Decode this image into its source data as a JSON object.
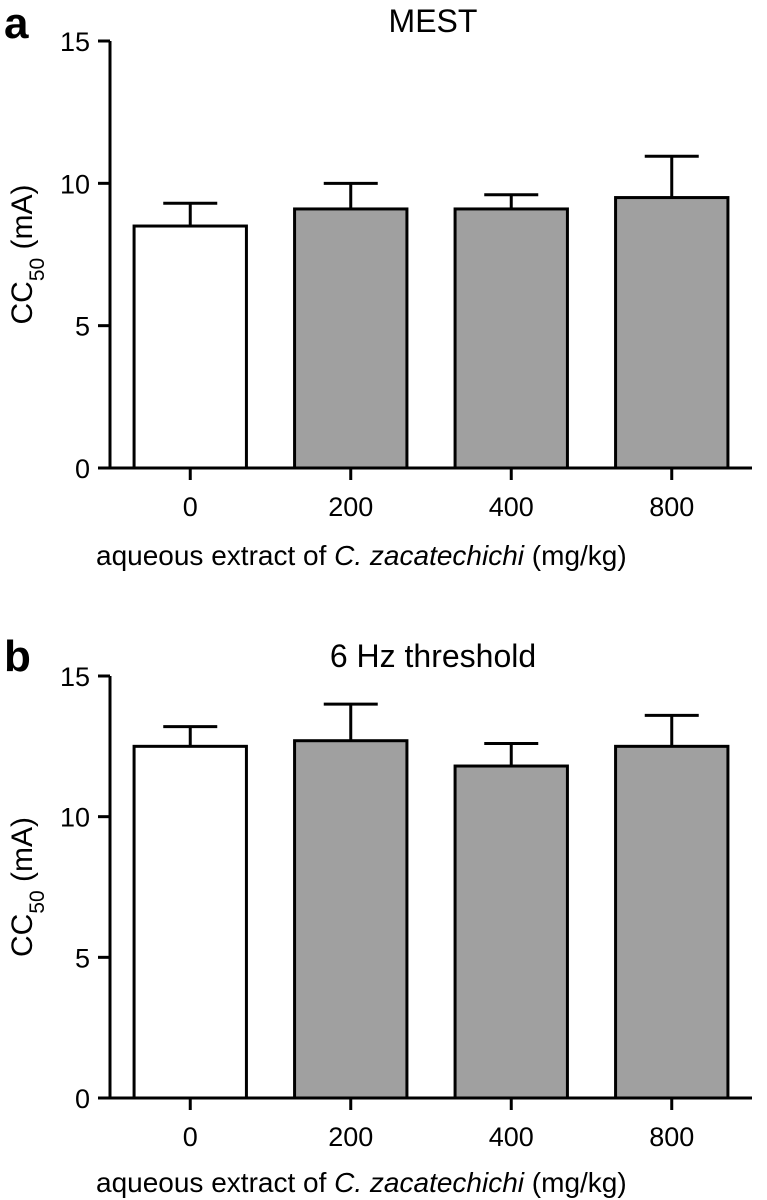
{
  "chart_data": [
    {
      "panel": "a",
      "type": "bar",
      "title": "MEST",
      "ylabel": "CC",
      "ylabel_sub": "50",
      "ylabel_unit": " (mA)",
      "xlabel_pre": "aqueous extract of ",
      "xlabel_italic": "C. zacatechichi",
      "xlabel_post": " (mg/kg)",
      "categories": [
        "0",
        "200",
        "400",
        "800"
      ],
      "values": [
        8.5,
        9.1,
        9.1,
        9.5
      ],
      "errors": [
        0.8,
        0.9,
        0.5,
        1.45
      ],
      "bar_colors": [
        "#ffffff",
        "#a0a0a0",
        "#a0a0a0",
        "#a0a0a0"
      ],
      "ylim": [
        0,
        15
      ],
      "yticks": [
        0,
        5,
        10,
        15
      ],
      "grid": false
    },
    {
      "panel": "b",
      "type": "bar",
      "title": "6 Hz threshold",
      "ylabel": "CC",
      "ylabel_sub": "50",
      "ylabel_unit": " (mA)",
      "xlabel_pre": "aqueous extract of ",
      "xlabel_italic": "C. zacatechichi",
      "xlabel_post": " (mg/kg)",
      "categories": [
        "0",
        "200",
        "400",
        "800"
      ],
      "values": [
        12.5,
        12.7,
        11.8,
        12.5
      ],
      "errors": [
        0.7,
        1.3,
        0.8,
        1.1
      ],
      "bar_colors": [
        "#ffffff",
        "#a0a0a0",
        "#a0a0a0",
        "#a0a0a0"
      ],
      "ylim": [
        0,
        15
      ],
      "yticks": [
        0,
        5,
        10,
        15
      ],
      "grid": false
    }
  ],
  "panels": {
    "a_label": "a",
    "b_label": "b"
  }
}
